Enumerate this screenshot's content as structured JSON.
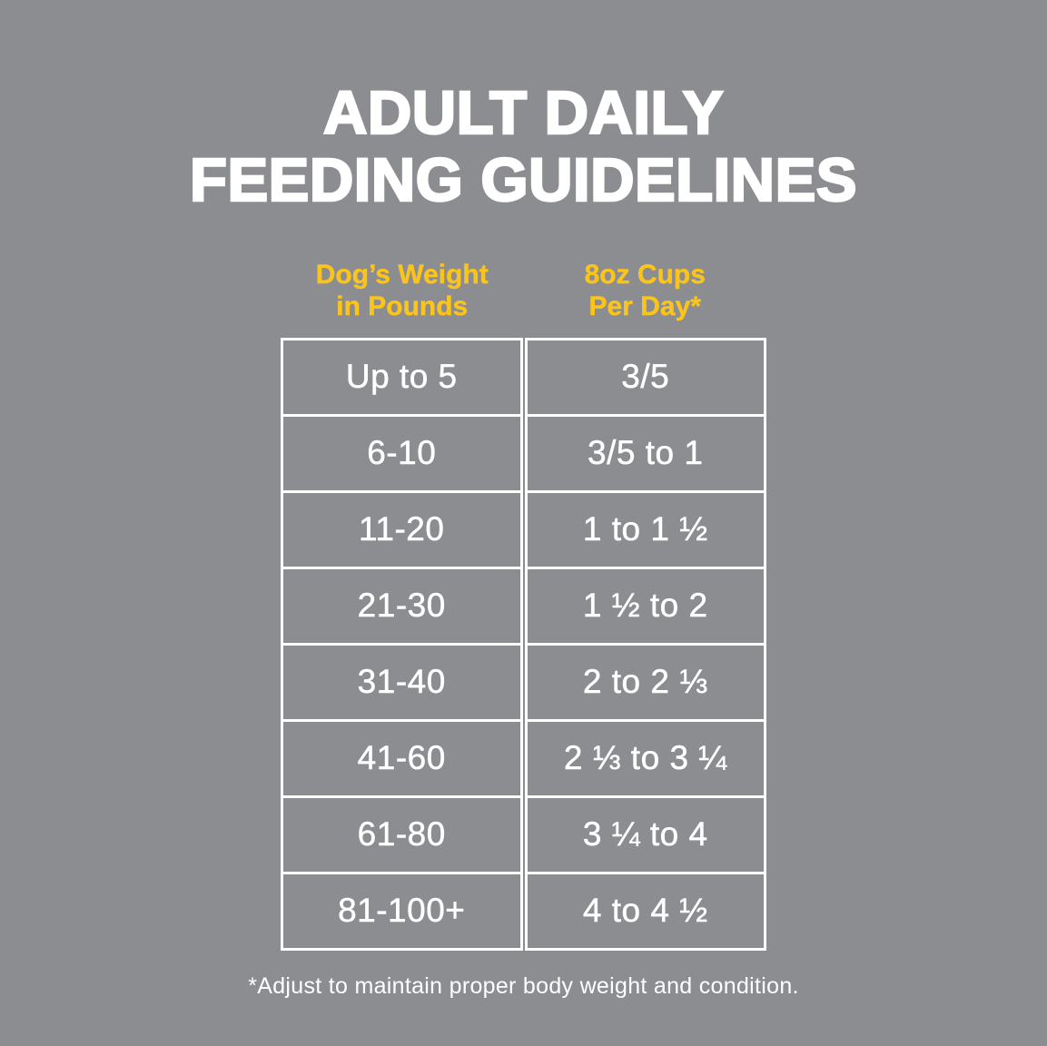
{
  "colors": {
    "background": "#8C8D91",
    "accent_yellow": "#FBC41B",
    "text_white": "#FFFFFF",
    "table_border": "#FFFFFF"
  },
  "title": {
    "line1": "ADULT DAILY",
    "line2": "FEEDING GUIDELINES"
  },
  "headers": {
    "weight_line1": "Dog’s Weight",
    "weight_line2": "in Pounds",
    "cups_line1": "8oz Cups",
    "cups_line2": "Per Day*"
  },
  "chart_data": {
    "type": "table",
    "title": "Adult Daily Feeding Guidelines",
    "columns": [
      "Dog’s Weight in Pounds",
      "8oz Cups Per Day*"
    ],
    "rows": [
      [
        "Up to 5",
        "3/5"
      ],
      [
        "6-10",
        "3/5 to 1"
      ],
      [
        "11-20",
        "1 to 1 ½"
      ],
      [
        "21-30",
        "1 ½ to 2"
      ],
      [
        "31-40",
        "2 to 2 ⅓"
      ],
      [
        "41-60",
        "2 ⅓ to 3 ¼"
      ],
      [
        "61-80",
        "3 ¼ to 4"
      ],
      [
        "81-100+",
        "4 to 4 ½"
      ]
    ],
    "footnote": "*Adjust to maintain proper body weight and condition."
  }
}
